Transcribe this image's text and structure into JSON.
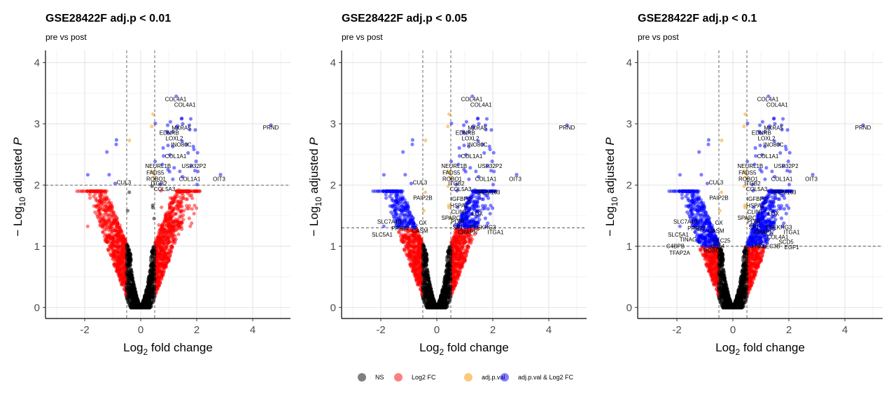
{
  "figure": {
    "legend": [
      {
        "label": "NS",
        "color": "#000000"
      },
      {
        "label": "Log2 FC",
        "color": "#ff0000"
      },
      {
        "label": "adj.p.val",
        "color": "#f5a623"
      },
      {
        "label": "adj.p.val & Log2 FC",
        "color": "#0000ff"
      }
    ]
  },
  "chart_data": [
    {
      "type": "scatter",
      "title": "GSE28422F adj.p < 0.01",
      "subtitle": "pre vs post",
      "xlabel_main": "Log",
      "xlabel_sub": "2",
      "xlabel_tail": " fold change",
      "ylabel_pre": "− Log",
      "ylabel_sub": "10",
      "ylabel_tail": " adjusted ",
      "ylabel_italic": "P",
      "xlim": [
        -3.4,
        5.35
      ],
      "ylim": [
        -0.18,
        4.2
      ],
      "xticks": [
        -2,
        0,
        2,
        4
      ],
      "yticks": [
        0,
        1,
        2,
        3,
        4
      ],
      "xtick_labels": [
        "-2",
        "0",
        "2",
        "4"
      ],
      "ytick_labels": [
        "0",
        "1",
        "2",
        "3",
        "4"
      ],
      "fc_cutoff": 0.5,
      "p_cutoff_log10": 2,
      "grid": true,
      "labels": [
        {
          "text": "COL4A1",
          "x": 1.25,
          "y": 3.37
        },
        {
          "text": "COL4A1",
          "x": 1.58,
          "y": 3.28
        },
        {
          "text": "PRND",
          "x": 4.65,
          "y": 2.91
        },
        {
          "text": "MXRA5",
          "x": 1.45,
          "y": 2.9
        },
        {
          "text": "EDNRB",
          "x": 1.02,
          "y": 2.82
        },
        {
          "text": "LOXL2",
          "x": 1.2,
          "y": 2.73
        },
        {
          "text": "INO80C",
          "x": 1.45,
          "y": 2.63
        },
        {
          "text": "COL1A1",
          "x": 1.25,
          "y": 2.44
        },
        {
          "text": "NEURL1B",
          "x": 0.62,
          "y": 2.28
        },
        {
          "text": "USP32P2",
          "x": 1.9,
          "y": 2.28
        },
        {
          "text": "FADS5",
          "x": 0.52,
          "y": 2.17
        },
        {
          "text": "ROBO1",
          "x": 0.55,
          "y": 2.07
        },
        {
          "text": "COL1A1",
          "x": 1.75,
          "y": 2.07
        },
        {
          "text": "OIT3",
          "x": 2.8,
          "y": 2.07
        },
        {
          "text": "CUL3",
          "x": -0.6,
          "y": 2.01
        },
        {
          "text": "ITGB2",
          "x": 0.65,
          "y": 1.99
        },
        {
          "text": "COL5A3",
          "x": 0.85,
          "y": 1.9
        }
      ]
    },
    {
      "type": "scatter",
      "title": "GSE28422F adj.p < 0.05",
      "subtitle": "pre vs post",
      "xlabel_main": "Log",
      "xlabel_sub": "2",
      "xlabel_tail": " fold change",
      "ylabel_pre": "− Log",
      "ylabel_sub": "10",
      "ylabel_tail": " adjusted ",
      "ylabel_italic": "P",
      "xlim": [
        -3.4,
        5.35
      ],
      "ylim": [
        -0.18,
        4.2
      ],
      "xticks": [
        -2,
        0,
        2,
        4
      ],
      "yticks": [
        0,
        1,
        2,
        3,
        4
      ],
      "xtick_labels": [
        "-2",
        "0",
        "2",
        "4"
      ],
      "ytick_labels": [
        "0",
        "1",
        "2",
        "3",
        "4"
      ],
      "fc_cutoff": 0.5,
      "p_cutoff_log10": 1.3,
      "grid": true,
      "labels": [
        {
          "text": "COL4A1",
          "x": 1.25,
          "y": 3.37
        },
        {
          "text": "COL4A1",
          "x": 1.58,
          "y": 3.28
        },
        {
          "text": "PRND",
          "x": 4.65,
          "y": 2.91
        },
        {
          "text": "MXRA5",
          "x": 1.45,
          "y": 2.9
        },
        {
          "text": "EDNRB",
          "x": 1.02,
          "y": 2.82
        },
        {
          "text": "LOXL2",
          "x": 1.2,
          "y": 2.73
        },
        {
          "text": "INO80C",
          "x": 1.45,
          "y": 2.63
        },
        {
          "text": "COL1A1",
          "x": 1.25,
          "y": 2.44
        },
        {
          "text": "NEURL1B",
          "x": 0.62,
          "y": 2.28
        },
        {
          "text": "USP32P2",
          "x": 1.9,
          "y": 2.28
        },
        {
          "text": "FADS5",
          "x": 0.52,
          "y": 2.17
        },
        {
          "text": "ROBO1",
          "x": 0.55,
          "y": 2.07
        },
        {
          "text": "COL1A1",
          "x": 1.75,
          "y": 2.07
        },
        {
          "text": "OIT3",
          "x": 2.8,
          "y": 2.07
        },
        {
          "text": "CUL3",
          "x": -0.6,
          "y": 2.01
        },
        {
          "text": "ITGB2",
          "x": 0.7,
          "y": 1.99
        },
        {
          "text": "COL5A3",
          "x": 0.85,
          "y": 1.9
        },
        {
          "text": "TMEM163",
          "x": 1.8,
          "y": 1.85
        },
        {
          "text": "PAIP2B",
          "x": -0.5,
          "y": 1.76
        },
        {
          "text": "IGFBP2",
          "x": 0.85,
          "y": 1.74
        },
        {
          "text": "HSPA2",
          "x": 0.8,
          "y": 1.63
        },
        {
          "text": "CLINT",
          "x": 0.8,
          "y": 1.53
        },
        {
          "text": "LOX",
          "x": 1.45,
          "y": 1.5
        },
        {
          "text": "SPARC",
          "x": 0.5,
          "y": 1.43
        },
        {
          "text": "PDIR",
          "x": 0.75,
          "y": 1.37
        },
        {
          "text": "SLC7A10",
          "x": -1.7,
          "y": 1.37
        },
        {
          "text": "CX",
          "x": -0.5,
          "y": 1.35
        },
        {
          "text": "SP1",
          "x": 0.75,
          "y": 1.28
        },
        {
          "text": "PLEKHG3",
          "x": 1.65,
          "y": 1.28
        },
        {
          "text": "PRR22",
          "x": -1.3,
          "y": 1.26
        },
        {
          "text": "CASM",
          "x": -0.6,
          "y": 1.22
        },
        {
          "text": "CRAPN",
          "x": 1.1,
          "y": 1.2
        },
        {
          "text": "ITGA1",
          "x": 2.1,
          "y": 1.2
        },
        {
          "text": "SLC5A1",
          "x": -1.95,
          "y": 1.16
        }
      ]
    },
    {
      "type": "scatter",
      "title": "GSE28422F adj.p < 0.1",
      "subtitle": "pre vs post",
      "xlabel_main": "Log",
      "xlabel_sub": "2",
      "xlabel_tail": " fold change",
      "ylabel_pre": "− Log",
      "ylabel_sub": "10",
      "ylabel_tail": " adjusted ",
      "ylabel_italic": "P",
      "xlim": [
        -3.4,
        5.35
      ],
      "ylim": [
        -0.18,
        4.2
      ],
      "xticks": [
        -2,
        0,
        2,
        4
      ],
      "yticks": [
        0,
        1,
        2,
        3,
        4
      ],
      "xtick_labels": [
        "-2",
        "0",
        "2",
        "4"
      ],
      "ytick_labels": [
        "0",
        "1",
        "2",
        "3",
        "4"
      ],
      "fc_cutoff": 0.5,
      "p_cutoff_log10": 1.0,
      "grid": true,
      "labels": [
        {
          "text": "COL4A1",
          "x": 1.25,
          "y": 3.37
        },
        {
          "text": "COL4A1",
          "x": 1.58,
          "y": 3.28
        },
        {
          "text": "PRND",
          "x": 4.65,
          "y": 2.91
        },
        {
          "text": "MXRA5",
          "x": 1.45,
          "y": 2.9
        },
        {
          "text": "EDNRB",
          "x": 1.02,
          "y": 2.82
        },
        {
          "text": "LOXL2",
          "x": 1.2,
          "y": 2.73
        },
        {
          "text": "INO80C",
          "x": 1.45,
          "y": 2.63
        },
        {
          "text": "COL1A1",
          "x": 1.25,
          "y": 2.44
        },
        {
          "text": "NEURL1B",
          "x": 0.62,
          "y": 2.28
        },
        {
          "text": "USP32P2",
          "x": 1.9,
          "y": 2.28
        },
        {
          "text": "FADS5",
          "x": 0.52,
          "y": 2.17
        },
        {
          "text": "ROBO1",
          "x": 0.55,
          "y": 2.07
        },
        {
          "text": "COL1A1",
          "x": 1.75,
          "y": 2.07
        },
        {
          "text": "OIT3",
          "x": 2.8,
          "y": 2.07
        },
        {
          "text": "CUL3",
          "x": -0.6,
          "y": 2.01
        },
        {
          "text": "ITGB2",
          "x": 0.7,
          "y": 1.99
        },
        {
          "text": "COL5A3",
          "x": 0.85,
          "y": 1.9
        },
        {
          "text": "TMEM163",
          "x": 1.8,
          "y": 1.85
        },
        {
          "text": "PAIP2B",
          "x": -0.5,
          "y": 1.76
        },
        {
          "text": "IGFBP2",
          "x": 0.85,
          "y": 1.74
        },
        {
          "text": "HSPA2",
          "x": 0.8,
          "y": 1.63
        },
        {
          "text": "CLINT",
          "x": 0.8,
          "y": 1.53
        },
        {
          "text": "LOX",
          "x": 1.45,
          "y": 1.5
        },
        {
          "text": "SPARC",
          "x": 0.5,
          "y": 1.43
        },
        {
          "text": "PDIR",
          "x": 0.75,
          "y": 1.37
        },
        {
          "text": "SLC7A10",
          "x": -1.7,
          "y": 1.37
        },
        {
          "text": "CX",
          "x": -0.5,
          "y": 1.35
        },
        {
          "text": "SP1",
          "x": 0.75,
          "y": 1.28
        },
        {
          "text": "PLEKHG3",
          "x": 1.65,
          "y": 1.28
        },
        {
          "text": "PRR22",
          "x": -1.3,
          "y": 1.26
        },
        {
          "text": "CASM",
          "x": -0.6,
          "y": 1.22
        },
        {
          "text": "CRAPN",
          "x": 1.1,
          "y": 1.2
        },
        {
          "text": "ITGA1",
          "x": 2.1,
          "y": 1.2
        },
        {
          "text": "SLC5A1",
          "x": -1.95,
          "y": 1.16
        },
        {
          "text": "COL4A1",
          "x": 1.6,
          "y": 1.12
        },
        {
          "text": "TINAG",
          "x": -1.6,
          "y": 1.08
        },
        {
          "text": "HLC25",
          "x": -0.4,
          "y": 1.06
        },
        {
          "text": "SCD5",
          "x": 1.9,
          "y": 1.04
        },
        {
          "text": "C4BPB",
          "x": -2.05,
          "y": 0.97
        },
        {
          "text": "CUL4",
          "x": -0.55,
          "y": 0.97
        },
        {
          "text": "HSC",
          "x": 0.9,
          "y": 0.97
        },
        {
          "text": "CLEC3B",
          "x": 1.3,
          "y": 0.97
        },
        {
          "text": "EGF1",
          "x": 2.1,
          "y": 0.95
        },
        {
          "text": "ROBO3",
          "x": -0.7,
          "y": 0.9
        },
        {
          "text": "TFAP2A",
          "x": -1.9,
          "y": 0.86
        }
      ]
    }
  ]
}
